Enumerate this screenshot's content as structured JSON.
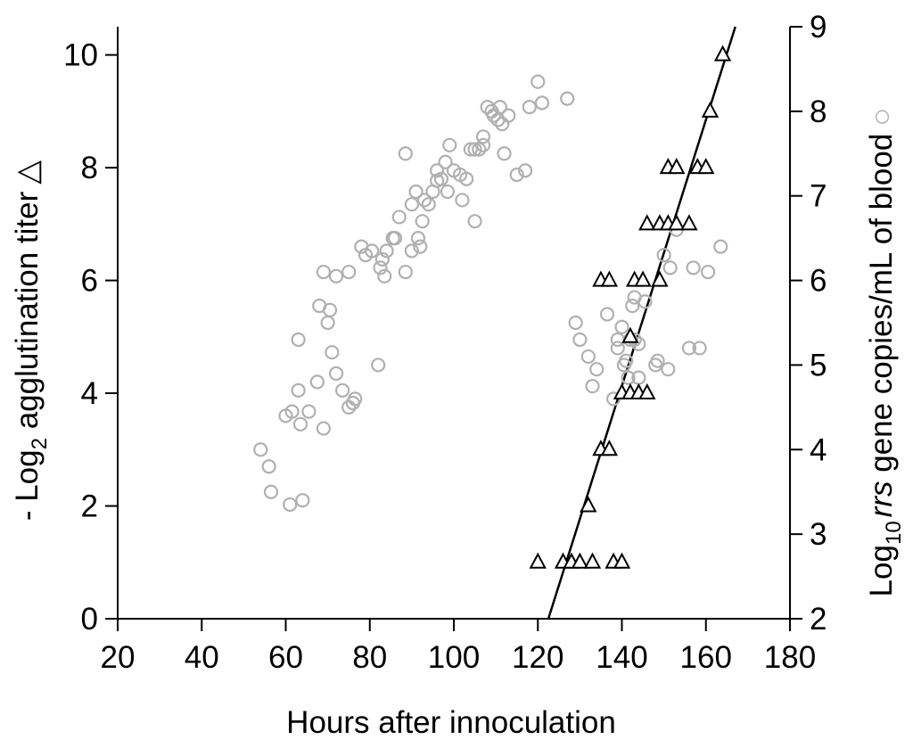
{
  "chart_data": {
    "type": "scatter",
    "xlabel": "Hours after innoculation",
    "ylabel_left": {
      "prefix": "- Log",
      "sub": "2",
      "suffix": " agglutination titer",
      "marker": "△"
    },
    "ylabel_right": {
      "prefix": "Log",
      "sub": "10",
      "italic": "rrs",
      "suffix": " gene copies/mL of blood",
      "marker": "○"
    },
    "xlim": [
      20,
      180
    ],
    "ylim_left": [
      0,
      10.5
    ],
    "ylim_right": [
      2,
      9
    ],
    "x_ticks": [
      20,
      40,
      60,
      80,
      100,
      120,
      140,
      160,
      180
    ],
    "y_ticks_left": [
      0,
      2,
      4,
      6,
      8,
      10
    ],
    "y_ticks_right": [
      2,
      3,
      4,
      5,
      6,
      7,
      8,
      9
    ],
    "grid": false,
    "colors": {
      "circles": "#b0b0b0",
      "triangles": "#000000",
      "fit": "#000000",
      "axes": "#000000"
    },
    "fit_line": {
      "x": [
        122.5,
        167
      ],
      "y_left": [
        0,
        10.5
      ]
    },
    "series": [
      {
        "marker": "triangle",
        "axis": "left",
        "points": [
          [
            120,
            1
          ],
          [
            126,
            1
          ],
          [
            128,
            1
          ],
          [
            130,
            1
          ],
          [
            133,
            1
          ],
          [
            138,
            1
          ],
          [
            140,
            1
          ],
          [
            132,
            2
          ],
          [
            135,
            3
          ],
          [
            137,
            3
          ],
          [
            140,
            4
          ],
          [
            142,
            4
          ],
          [
            144,
            4
          ],
          [
            146,
            4
          ],
          [
            142,
            5
          ],
          [
            135,
            6
          ],
          [
            137,
            6
          ],
          [
            143,
            6
          ],
          [
            145,
            6
          ],
          [
            149,
            6
          ],
          [
            146,
            7
          ],
          [
            149,
            7
          ],
          [
            151,
            7
          ],
          [
            153,
            7
          ],
          [
            156,
            7
          ],
          [
            151,
            8
          ],
          [
            153,
            8
          ],
          [
            158,
            8
          ],
          [
            160,
            8
          ],
          [
            161,
            9
          ],
          [
            164,
            10
          ]
        ]
      },
      {
        "marker": "circle",
        "axis": "right",
        "points": [
          [
            54,
            4
          ],
          [
            56,
            3.8
          ],
          [
            56.5,
            3.5
          ],
          [
            61,
            3.35
          ],
          [
            64,
            3.4
          ],
          [
            60,
            4.4
          ],
          [
            61.5,
            4.45
          ],
          [
            63.5,
            4.3
          ],
          [
            65.5,
            4.45
          ],
          [
            63,
            4.7
          ],
          [
            69,
            4.25
          ],
          [
            67.5,
            4.8
          ],
          [
            71,
            5.15
          ],
          [
            72,
            4.9
          ],
          [
            73.5,
            4.7
          ],
          [
            75,
            4.5
          ],
          [
            76,
            4.55
          ],
          [
            76.5,
            4.6
          ],
          [
            63,
            5.3
          ],
          [
            70,
            5.5
          ],
          [
            68,
            5.7
          ],
          [
            70.5,
            5.65
          ],
          [
            69,
            6.1
          ],
          [
            72,
            6.05
          ],
          [
            75,
            6.1
          ],
          [
            82,
            5
          ],
          [
            78,
            6.4
          ],
          [
            79,
            6.3
          ],
          [
            80.5,
            6.35
          ],
          [
            83,
            6.25
          ],
          [
            84,
            6.35
          ],
          [
            82.5,
            6.15
          ],
          [
            83.5,
            6.05
          ],
          [
            85.5,
            6.5
          ],
          [
            86,
            6.5
          ],
          [
            88.5,
            6.1
          ],
          [
            90,
            6.35
          ],
          [
            91.5,
            6.5
          ],
          [
            92,
            6.4
          ],
          [
            92.5,
            6.7
          ],
          [
            94,
            6.9
          ],
          [
            93,
            6.95
          ],
          [
            91,
            7.05
          ],
          [
            90,
            6.9
          ],
          [
            87,
            6.75
          ],
          [
            88.5,
            7.5
          ],
          [
            95,
            7.05
          ],
          [
            96,
            7.18
          ],
          [
            97,
            7.2
          ],
          [
            98,
            7.4
          ],
          [
            96,
            7.3
          ],
          [
            100,
            7.3
          ],
          [
            101.5,
            7.25
          ],
          [
            102,
            6.95
          ],
          [
            103,
            7.2
          ],
          [
            104,
            7.55
          ],
          [
            99,
            7.6
          ],
          [
            105,
            7.55
          ],
          [
            106,
            7.55
          ],
          [
            107,
            7.6
          ],
          [
            107,
            7.7
          ],
          [
            112,
            7.5
          ],
          [
            115,
            7.25
          ],
          [
            117,
            7.3
          ],
          [
            98.5,
            7.05
          ],
          [
            105,
            6.7
          ],
          [
            108,
            8.05
          ],
          [
            109.5,
            7.95
          ],
          [
            110.5,
            7.9
          ],
          [
            111.5,
            7.85
          ],
          [
            109,
            8
          ],
          [
            111,
            8.05
          ],
          [
            113,
            7.95
          ],
          [
            118,
            8.05
          ],
          [
            120,
            8.35
          ],
          [
            121,
            8.1
          ],
          [
            127,
            8.15
          ],
          [
            129,
            5.5
          ],
          [
            130,
            5.3
          ],
          [
            132,
            5.1
          ],
          [
            134,
            4.95
          ],
          [
            136.5,
            5.6
          ],
          [
            139,
            5.2
          ],
          [
            139,
            5.3
          ],
          [
            141,
            5.05
          ],
          [
            142,
            5.3
          ],
          [
            143,
            5.3
          ],
          [
            144,
            5.25
          ],
          [
            140,
            5.45
          ],
          [
            142.5,
            5.7
          ],
          [
            143,
            5.8
          ],
          [
            145.5,
            5.75
          ],
          [
            148,
            5.0
          ],
          [
            148.5,
            5.05
          ],
          [
            151,
            4.95
          ],
          [
            133,
            4.75
          ],
          [
            138,
            4.6
          ],
          [
            140.5,
            5.0
          ],
          [
            141.5,
            4.85
          ],
          [
            144,
            4.85
          ],
          [
            150,
            6.3
          ],
          [
            151.5,
            6.15
          ],
          [
            153,
            6.6
          ],
          [
            157,
            6.15
          ],
          [
            160.5,
            6.1
          ],
          [
            163.5,
            6.4
          ],
          [
            156,
            5.2
          ],
          [
            158.5,
            5.2
          ]
        ]
      }
    ]
  }
}
